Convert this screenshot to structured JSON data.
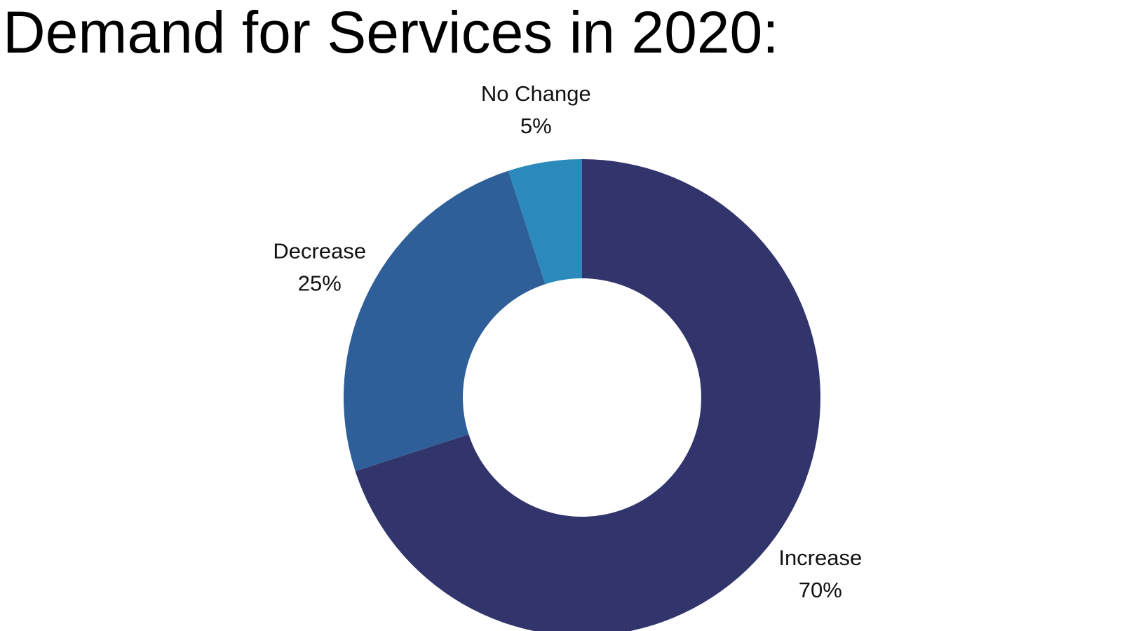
{
  "chart_data": {
    "type": "pie",
    "variant": "donut",
    "title": "Demand for Services in 2020:",
    "slices": [
      {
        "label": "Increase",
        "value": 70,
        "value_label": "70%",
        "color": "#31356b"
      },
      {
        "label": "Decrease",
        "value": 25,
        "value_label": "25%",
        "color": "#2f5f98"
      },
      {
        "label": "No Change",
        "value": 5,
        "value_label": "5%",
        "color": "#2b8abb"
      }
    ],
    "start": "12 o'clock",
    "direction": "clockwise",
    "legend": "none",
    "labels": "outside"
  }
}
